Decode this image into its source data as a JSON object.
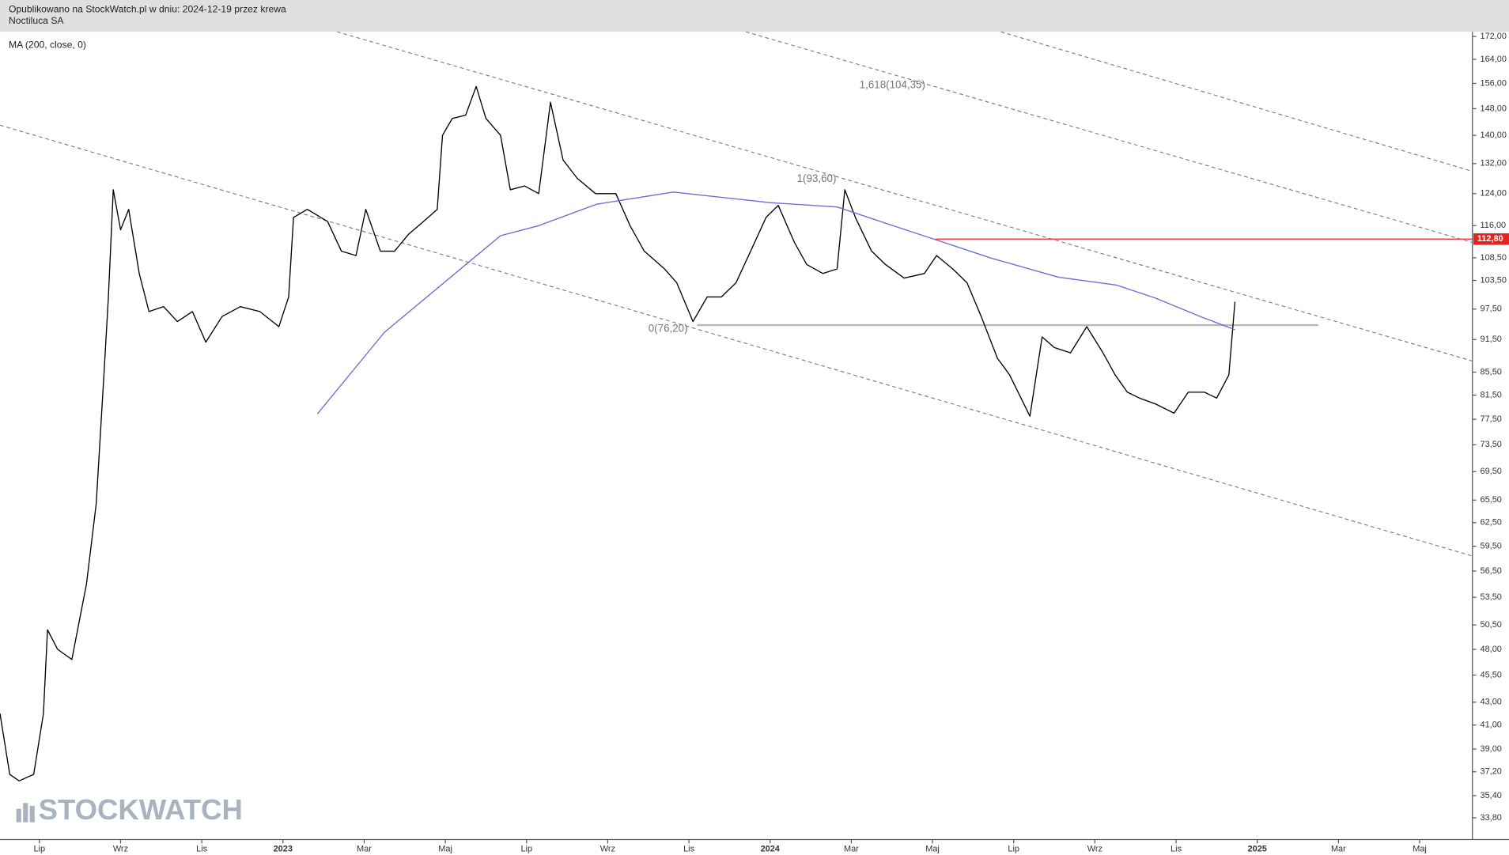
{
  "header": {
    "published": "Opublikowano na StockWatch.pl w dniu: 2024-12-19 przez krewa",
    "instrument": "Noctiluca SA"
  },
  "chart_data": {
    "type": "line",
    "indicator_label": "MA (200, close, 0)",
    "watermark": "STOCKWATCH",
    "log_scale": true,
    "xlim": [
      -0.97,
      35.3
    ],
    "ylim": [
      32.3,
      173.7
    ],
    "xticks": [
      {
        "value": 0,
        "label": "Lip"
      },
      {
        "value": 2,
        "label": "Wrz"
      },
      {
        "value": 4,
        "label": "Lis"
      },
      {
        "value": 6,
        "label": "2023"
      },
      {
        "value": 8,
        "label": "Mar"
      },
      {
        "value": 10,
        "label": "Maj"
      },
      {
        "value": 12,
        "label": "Lip"
      },
      {
        "value": 14,
        "label": "Wrz"
      },
      {
        "value": 16,
        "label": "Lis"
      },
      {
        "value": 18,
        "label": "2024"
      },
      {
        "value": 20,
        "label": "Mar"
      },
      {
        "value": 22,
        "label": "Maj"
      },
      {
        "value": 24,
        "label": "Lip"
      },
      {
        "value": 26,
        "label": "Wrz"
      },
      {
        "value": 28,
        "label": "Lis"
      },
      {
        "value": 30,
        "label": "2025"
      },
      {
        "value": 32,
        "label": "Mar"
      },
      {
        "value": 34,
        "label": "Maj"
      }
    ],
    "yticks": [
      {
        "value": 172,
        "label": "172,00"
      },
      {
        "value": 164,
        "label": "164,00"
      },
      {
        "value": 156,
        "label": "156,00"
      },
      {
        "value": 148,
        "label": "148,00"
      },
      {
        "value": 140,
        "label": "140,00"
      },
      {
        "value": 132,
        "label": "132,00"
      },
      {
        "value": 124,
        "label": "124,00"
      },
      {
        "value": 116,
        "label": "116,00"
      },
      {
        "value": 108.5,
        "label": "108,50"
      },
      {
        "value": 103.5,
        "label": "103,50"
      },
      {
        "value": 97.5,
        "label": "97,50"
      },
      {
        "value": 91.5,
        "label": "91,50"
      },
      {
        "value": 85.5,
        "label": "85,50"
      },
      {
        "value": 81.5,
        "label": "81,50"
      },
      {
        "value": 77.5,
        "label": "77,50"
      },
      {
        "value": 73.5,
        "label": "73,50"
      },
      {
        "value": 69.5,
        "label": "69,50"
      },
      {
        "value": 65.5,
        "label": "65,50"
      },
      {
        "value": 62.5,
        "label": "62,50"
      },
      {
        "value": 59.5,
        "label": "59,50"
      },
      {
        "value": 56.5,
        "label": "56,50"
      },
      {
        "value": 53.5,
        "label": "53,50"
      },
      {
        "value": 50.5,
        "label": "50,50"
      },
      {
        "value": 48,
        "label": "48,00"
      },
      {
        "value": 45.5,
        "label": "45,50"
      },
      {
        "value": 43,
        "label": "43,00"
      },
      {
        "value": 41,
        "label": "41,00"
      },
      {
        "value": 39,
        "label": "39,00"
      },
      {
        "value": 37.2,
        "label": "37,20"
      },
      {
        "value": 35.4,
        "label": "35,40"
      },
      {
        "value": 33.8,
        "label": "33,80"
      }
    ],
    "series": [
      {
        "color": "#000000",
        "x": [
          -0.97,
          -0.73,
          -0.5,
          -0.14,
          0.1,
          0.2,
          0.45,
          0.8,
          1.16,
          1.4,
          1.59,
          1.7,
          1.82,
          2.0,
          2.2,
          2.46,
          2.7,
          3.06,
          3.4,
          3.77,
          4.1,
          4.5,
          4.95,
          5.43,
          5.9,
          6.14,
          6.26,
          6.6,
          7.1,
          7.44,
          7.8,
          8.04,
          8.4,
          8.75,
          9.1,
          9.46,
          9.8,
          9.93,
          10.17,
          10.5,
          10.76,
          11.0,
          11.36,
          11.6,
          11.95,
          12.3,
          12.59,
          12.9,
          13.25,
          13.7,
          14.2,
          14.55,
          14.9,
          15.4,
          15.7,
          16.1,
          16.45,
          16.8,
          17.16,
          17.52,
          17.9,
          18.2,
          18.6,
          18.9,
          19.3,
          19.65,
          19.84,
          20.1,
          20.5,
          20.84,
          21.3,
          21.8,
          22.1,
          22.5,
          22.85,
          23.2,
          23.6,
          23.9,
          24.4,
          24.7,
          25.0,
          25.4,
          25.8,
          26.2,
          26.5,
          26.8,
          27.1,
          27.5,
          27.95,
          28.3,
          28.7,
          29.0,
          29.3,
          29.45
        ],
        "values": [
          42,
          37,
          36.5,
          37,
          42,
          50,
          48,
          47,
          55,
          65,
          85,
          100,
          125,
          115,
          120,
          105,
          97,
          98,
          95,
          97,
          91,
          96,
          98,
          97,
          94,
          100,
          118,
          120,
          117,
          110,
          109,
          120,
          110,
          110,
          114,
          117,
          120,
          140,
          145,
          146,
          155,
          145,
          140,
          125,
          126,
          124,
          150,
          133,
          128,
          124,
          124,
          116,
          110,
          106,
          103,
          95,
          100,
          100,
          103,
          110,
          118,
          121,
          112,
          107,
          105,
          106,
          125,
          118,
          110,
          107,
          104,
          105,
          109,
          106,
          103,
          96,
          88,
          85,
          78,
          92,
          90,
          89,
          94,
          89,
          85,
          82,
          81,
          80,
          78.5,
          82,
          82,
          81,
          85,
          99
        ]
      },
      {
        "name": "MA (200, close, 0)",
        "color": "#6b6bd6",
        "x": [
          6.85,
          8.5,
          10.64,
          11.36,
          12.3,
          13.73,
          15.62,
          17.99,
          19.65,
          20.84,
          22.03,
          23.45,
          25.1,
          26.53,
          27.48,
          28.66,
          29.45
        ],
        "values": [
          78.4,
          92.9,
          108,
          113.6,
          116,
          121.3,
          124.4,
          121.7,
          120.6,
          116.6,
          112.8,
          108.4,
          104.2,
          102.5,
          99.8,
          95.8,
          93.4
        ]
      }
    ],
    "trend_lines": [
      {
        "x": [
          -0.97,
          35.3
        ],
        "values": [
          143.0,
          58.3
        ]
      },
      {
        "x": [
          7.33,
          35.3
        ],
        "values": [
          173.7,
          87.5
        ]
      },
      {
        "x": [
          17.4,
          35.3
        ],
        "values": [
          173.7,
          112.0
        ]
      },
      {
        "x": [
          23.68,
          35.3
        ],
        "values": [
          173.7,
          129.9
        ]
      }
    ],
    "levels": [
      {
        "value": 112.8,
        "label": "112,80",
        "color": "#e8231f",
        "x_from": 22.07
      },
      {
        "value": 94.3,
        "color": "#b8b8b8",
        "x_from": 16.2,
        "x_to": 31.5
      }
    ],
    "annotations": [
      {
        "text": "0(76,20)",
        "x": 15.0,
        "y": 93.5
      },
      {
        "text": "1(93,60)",
        "x": 18.66,
        "y": 127.8
      },
      {
        "text": "1,618(104,35)",
        "x": 20.2,
        "y": 155.3
      }
    ]
  }
}
